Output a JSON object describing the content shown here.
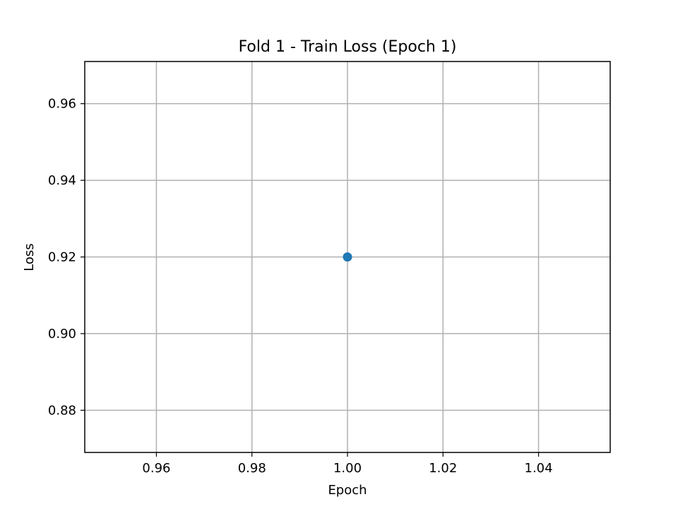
{
  "chart_data": {
    "type": "scatter",
    "title": "Fold 1 - Train Loss (Epoch 1)",
    "xlabel": "Epoch",
    "ylabel": "Loss",
    "xlim": [
      0.945,
      1.055
    ],
    "ylim": [
      0.869,
      0.971
    ],
    "xticks": [
      0.96,
      0.98,
      1.0,
      1.02,
      1.04
    ],
    "xtick_labels": [
      "0.96",
      "0.98",
      "1.00",
      "1.02",
      "1.04"
    ],
    "yticks": [
      0.88,
      0.9,
      0.92,
      0.94,
      0.96
    ],
    "ytick_labels": [
      "0.88",
      "0.90",
      "0.92",
      "0.94",
      "0.96"
    ],
    "grid": true,
    "series": [
      {
        "x": [
          1.0
        ],
        "y": [
          0.92
        ],
        "color": "#1f77b4",
        "marker": "circle"
      }
    ]
  }
}
